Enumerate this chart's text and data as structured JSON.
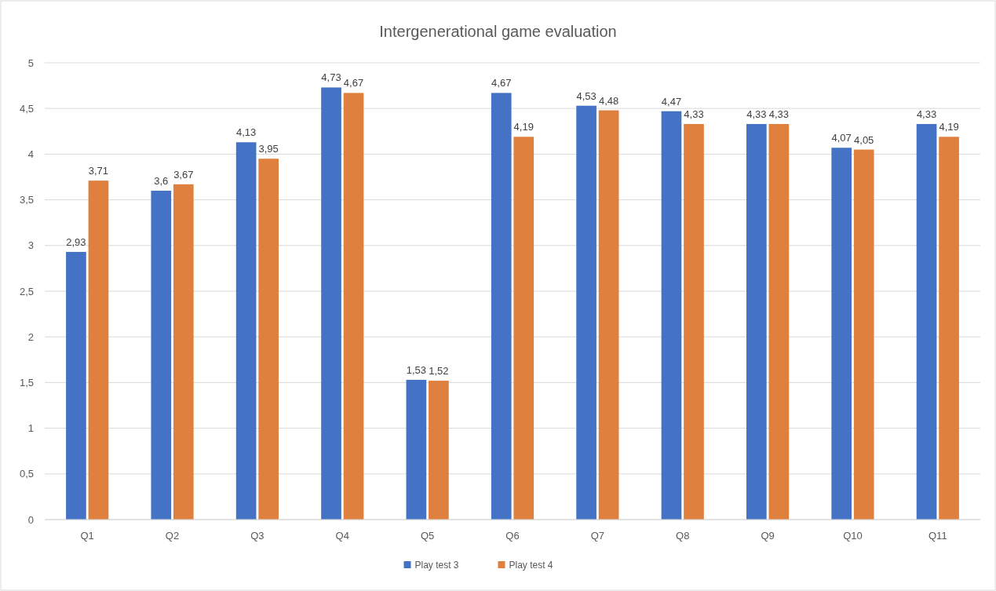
{
  "chart_data": {
    "type": "bar",
    "title": "Intergenerational game evaluation",
    "categories": [
      "Q1",
      "Q2",
      "Q3",
      "Q4",
      "Q5",
      "Q6",
      "Q7",
      "Q8",
      "Q9",
      "Q10",
      "Q11"
    ],
    "series": [
      {
        "name": "Play test 3",
        "color": "#4472c4",
        "values": [
          2.93,
          3.6,
          4.13,
          4.73,
          1.53,
          4.67,
          4.53,
          4.47,
          4.33,
          4.07,
          4.33
        ],
        "value_labels": [
          "2,93",
          "3,6",
          "4,13",
          "4,73",
          "1,53",
          "4,67",
          "4,53",
          "4,47",
          "4,33",
          "4,07",
          "4,33"
        ]
      },
      {
        "name": "Play test 4",
        "color": "#e0803e",
        "values": [
          3.71,
          3.67,
          3.95,
          4.67,
          1.52,
          4.19,
          4.48,
          4.33,
          4.33,
          4.05,
          4.19
        ],
        "value_labels": [
          "3,71",
          "3,67",
          "3,95",
          "4,67",
          "1,52",
          "4,19",
          "4,48",
          "4,33",
          "4,33",
          "4,05",
          "4,19"
        ]
      }
    ],
    "ylim": [
      0,
      5
    ],
    "yticks": [
      0,
      {
        "value": 0.5,
        "label": "0,5"
      },
      1,
      {
        "value": 1.5,
        "label": "1,5"
      },
      2,
      {
        "value": 2.5,
        "label": "2,5"
      },
      3,
      {
        "value": 3.5,
        "label": "3,5"
      },
      4,
      {
        "value": 4.5,
        "label": "4,5"
      },
      5
    ],
    "grid": "y",
    "legend": "bottom"
  }
}
